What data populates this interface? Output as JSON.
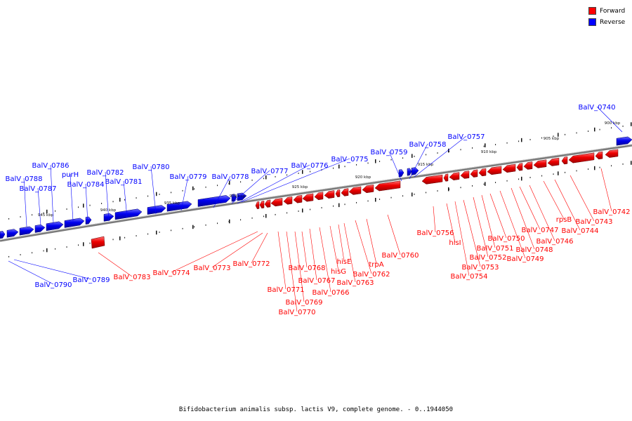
{
  "legend": {
    "forward_label": "Forward",
    "reverse_label": "Reverse",
    "forward_color": "#ff0000",
    "reverse_color": "#0000ff"
  },
  "footer": "Bifidobacterium animalis subsp. lactis V9, complete genome. - 0..1944050",
  "scale_labels": [
    "945 kbp",
    "940 kbp",
    "935 kbp",
    "930 kbp",
    "925 kbp",
    "920 kbp",
    "915 kbp",
    "910 kbp",
    "905 kbp",
    "900 kbp"
  ],
  "reverse_genes": [
    "BalV_0790",
    "BalV_0789",
    "BalV_0788",
    "BalV_0787",
    "BalV_0786",
    "purH",
    "BalV_0784",
    "BalV_0782",
    "BalV_0781",
    "BalV_0780",
    "BalV_0779",
    "BalV_0778",
    "BalV_0777",
    "BalV_0776",
    "BalV_0775",
    "BalV_0759",
    "BalV_0758",
    "BalV_0757",
    "BalV_0740"
  ],
  "forward_genes": [
    "BalV_0783",
    "BalV_0774",
    "BalV_0773",
    "BalV_0772",
    "BalV_0771",
    "BalV_0770",
    "BalV_0769",
    "BalV_0768",
    "BalV_0767",
    "BalV_0766",
    "hisG",
    "hisE",
    "BalV_0763",
    "BalV_0762",
    "trpA",
    "BalV_0760",
    "BalV_0756",
    "hisI",
    "BalV_0754",
    "BalV_0753",
    "BalV_0752",
    "BalV_0751",
    "BalV_0750",
    "BalV_0749",
    "BalV_0748",
    "BalV_0747",
    "BalV_0746",
    "rpsB",
    "BalV_0744",
    "BalV_0743",
    "BalV_0742"
  ]
}
